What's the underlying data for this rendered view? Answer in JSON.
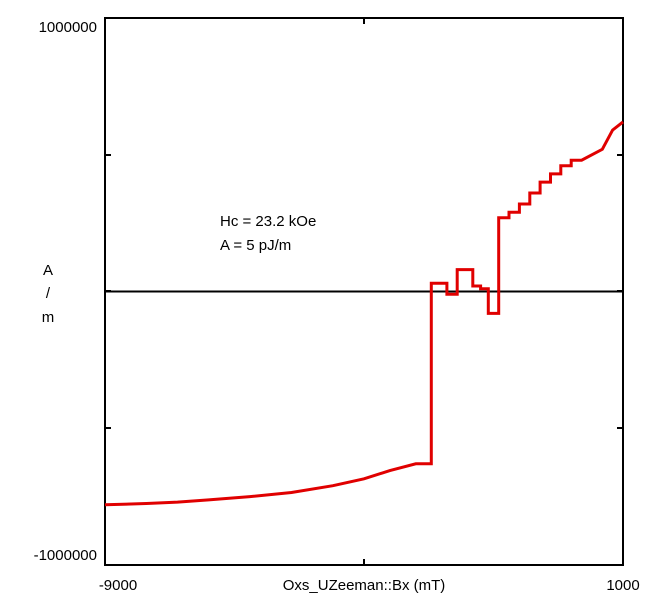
{
  "chart_data": {
    "type": "line",
    "title": "",
    "xlabel": "Oxs_UZeeman::Bx (mT)",
    "ylabel_lines": [
      "A",
      "/",
      "m"
    ],
    "xlim": [
      -9000,
      1000
    ],
    "ylim": [
      -1000000,
      1000000
    ],
    "x_tick_labels": [
      "-9000",
      "1000"
    ],
    "y_tick_labels": [
      "1000000",
      "-1000000"
    ],
    "grid": false,
    "annotations": [
      "Hc = 23.2 kOe",
      "A = 5 pJ/m"
    ],
    "zero_line_y": 0,
    "series": [
      {
        "color": "#e00000",
        "x": [
          -9000,
          -8200,
          -7600,
          -7000,
          -6200,
          -5400,
          -4600,
          -4000,
          -3500,
          -3000,
          -2700,
          -2700,
          -2400,
          -2400,
          -2200,
          -2200,
          -2050,
          -2050,
          -1900,
          -1900,
          -1750,
          -1750,
          -1600,
          -1600,
          -1400,
          -1400,
          -1200,
          -1200,
          -1000,
          -1000,
          -800,
          -800,
          -600,
          -600,
          -400,
          -400,
          -200,
          -200,
          0,
          0,
          200,
          600,
          800,
          1000
        ],
        "y": [
          -780000,
          -775000,
          -770000,
          -762000,
          -750000,
          -735000,
          -710000,
          -685000,
          -655000,
          -630000,
          -630000,
          30000,
          30000,
          -10000,
          -10000,
          80000,
          80000,
          80000,
          80000,
          20000,
          20000,
          10000,
          10000,
          -80000,
          -80000,
          270000,
          270000,
          290000,
          290000,
          320000,
          320000,
          360000,
          360000,
          400000,
          400000,
          430000,
          430000,
          460000,
          460000,
          480000,
          480000,
          520000,
          590000,
          620000
        ]
      }
    ]
  }
}
